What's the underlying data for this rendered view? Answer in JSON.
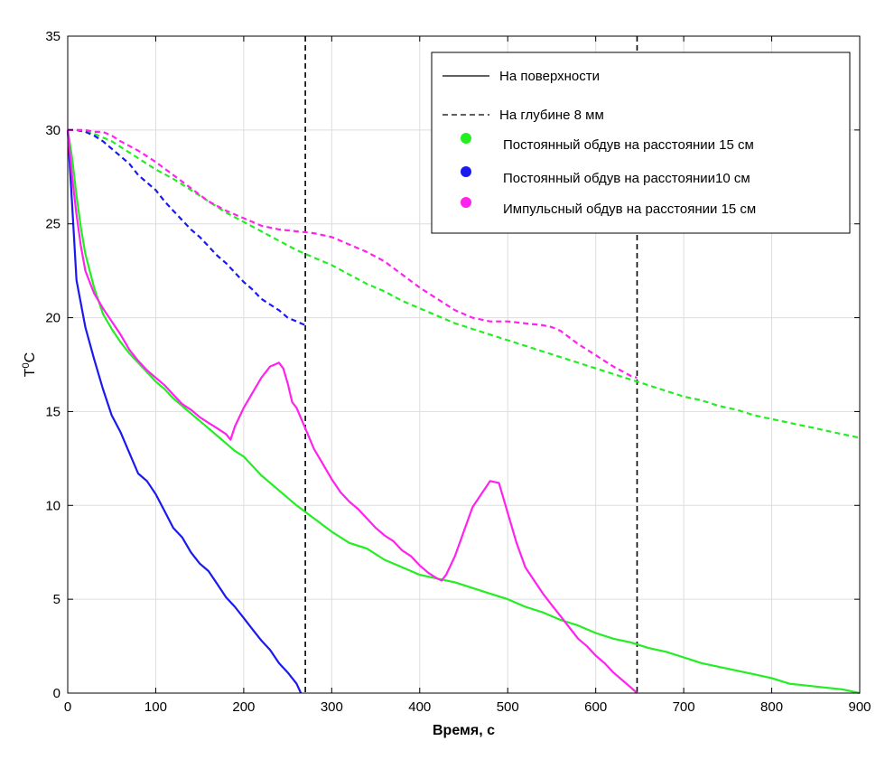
{
  "chart_data": {
    "type": "line",
    "title": "",
    "xlabel": "Время, с",
    "ylabel": "T⁰C",
    "ylabel_base": "T",
    "ylabel_sup": "0",
    "ylabel_unit": "C",
    "xlim": [
      0,
      900
    ],
    "ylim": [
      0,
      35
    ],
    "xticks": [
      0,
      100,
      200,
      300,
      400,
      500,
      600,
      700,
      800,
      900
    ],
    "yticks": [
      0,
      5,
      10,
      15,
      20,
      25,
      30,
      35
    ],
    "grid": true,
    "legend_position": "top-right",
    "legend": [
      {
        "label": "На поверхности",
        "style": "solid-line"
      },
      {
        "label": "На глубине 8 мм",
        "style": "dashed-line"
      },
      {
        "label": "Постоянный обдув на расстоянии 15 см",
        "style": "marker",
        "color": "#22ee22"
      },
      {
        "label": "Постоянный обдув на расстоянии10 см",
        "style": "marker",
        "color": "#1a1aee"
      },
      {
        "label": "Импульсный обдув на расстоянии 15 см",
        "style": "marker",
        "color": "#ff22ee"
      }
    ],
    "vlines": [
      {
        "x": 270,
        "style": "dashed",
        "color": "#000000"
      },
      {
        "x": 647,
        "style": "dashed",
        "color": "#000000"
      }
    ],
    "series": [
      {
        "condition": "Постоянный обдув на расстоянии 15 см",
        "location": "На поверхности",
        "color": "#22ee22",
        "dash": false,
        "x": [
          0,
          5,
          10,
          15,
          20,
          30,
          40,
          50,
          60,
          70,
          80,
          90,
          100,
          110,
          120,
          130,
          140,
          150,
          160,
          170,
          180,
          190,
          200,
          220,
          240,
          260,
          280,
          300,
          320,
          340,
          360,
          380,
          400,
          420,
          440,
          460,
          480,
          500,
          520,
          540,
          560,
          580,
          600,
          620,
          640,
          660,
          680,
          700,
          720,
          740,
          760,
          780,
          800,
          820,
          840,
          860,
          880,
          900
        ],
        "y": [
          30,
          28.5,
          26.5,
          24.8,
          23.4,
          21.6,
          20.2,
          19.4,
          18.7,
          18.1,
          17.6,
          17.1,
          16.6,
          16.2,
          15.7,
          15.3,
          14.9,
          14.5,
          14.1,
          13.7,
          13.3,
          12.9,
          12.6,
          11.6,
          10.8,
          10.0,
          9.3,
          8.6,
          8.0,
          7.7,
          7.1,
          6.7,
          6.3,
          6.1,
          5.9,
          5.6,
          5.3,
          5.0,
          4.6,
          4.3,
          3.9,
          3.6,
          3.2,
          2.9,
          2.7,
          2.4,
          2.2,
          1.9,
          1.6,
          1.4,
          1.2,
          1.0,
          0.8,
          0.5,
          0.4,
          0.3,
          0.2,
          0.0
        ]
      },
      {
        "condition": "Постоянный обдув на расстоянии10 см",
        "location": "На поверхности",
        "color": "#1a1aee",
        "dash": false,
        "x": [
          0,
          5,
          10,
          20,
          30,
          40,
          50,
          60,
          70,
          80,
          90,
          100,
          110,
          120,
          130,
          140,
          150,
          160,
          170,
          180,
          190,
          200,
          210,
          220,
          230,
          240,
          250,
          260,
          265
        ],
        "y": [
          30,
          26,
          22,
          19.5,
          17.8,
          16.2,
          14.8,
          13.9,
          12.8,
          11.7,
          11.3,
          10.6,
          9.7,
          8.8,
          8.3,
          7.5,
          6.9,
          6.5,
          5.8,
          5.1,
          4.6,
          4.0,
          3.4,
          2.8,
          2.3,
          1.6,
          1.1,
          0.5,
          0.0
        ]
      },
      {
        "condition": "Импульсный обдув на расстоянии 15 см",
        "location": "На поверхности",
        "color": "#ff22ee",
        "dash": false,
        "x": [
          0,
          5,
          10,
          15,
          20,
          30,
          40,
          50,
          60,
          70,
          80,
          90,
          100,
          110,
          120,
          130,
          140,
          150,
          160,
          170,
          180,
          185,
          190,
          200,
          210,
          220,
          230,
          240,
          245,
          250,
          255,
          260,
          270,
          280,
          290,
          300,
          310,
          320,
          330,
          340,
          350,
          360,
          370,
          380,
          390,
          400,
          410,
          420,
          425,
          430,
          440,
          450,
          460,
          470,
          480,
          490,
          500,
          510,
          520,
          530,
          540,
          550,
          560,
          570,
          580,
          590,
          600,
          610,
          620,
          630,
          640,
          647
        ],
        "y": [
          30,
          27.5,
          25.5,
          23.8,
          22.5,
          21.3,
          20.5,
          19.8,
          19.1,
          18.3,
          17.7,
          17.2,
          16.8,
          16.4,
          15.9,
          15.4,
          15.1,
          14.7,
          14.4,
          14.1,
          13.8,
          13.5,
          14.2,
          15.2,
          16.0,
          16.8,
          17.4,
          17.6,
          17.3,
          16.5,
          15.5,
          15.2,
          14.1,
          13.0,
          12.2,
          11.4,
          10.7,
          10.2,
          9.8,
          9.3,
          8.8,
          8.4,
          8.1,
          7.6,
          7.3,
          6.8,
          6.4,
          6.1,
          6.0,
          6.3,
          7.3,
          8.6,
          9.9,
          10.6,
          11.3,
          11.2,
          9.6,
          8.0,
          6.7,
          6.0,
          5.3,
          4.7,
          4.1,
          3.5,
          2.9,
          2.5,
          2.0,
          1.6,
          1.1,
          0.7,
          0.3,
          0.0
        ]
      },
      {
        "condition": "Постоянный обдув на расстоянии 15 см",
        "location": "На глубине 8 мм",
        "color": "#22ee22",
        "dash": true,
        "x": [
          0,
          10,
          20,
          30,
          40,
          50,
          60,
          80,
          100,
          120,
          140,
          160,
          180,
          200,
          220,
          240,
          260,
          280,
          300,
          320,
          340,
          360,
          380,
          400,
          420,
          440,
          460,
          480,
          500,
          520,
          540,
          560,
          580,
          600,
          620,
          640,
          660,
          680,
          700,
          720,
          740,
          760,
          780,
          800,
          820,
          840,
          860,
          880,
          900
        ],
        "y": [
          30,
          30,
          29.9,
          29.8,
          29.6,
          29.4,
          29.1,
          28.5,
          27.9,
          27.4,
          26.8,
          26.2,
          25.6,
          25.1,
          24.6,
          24.1,
          23.6,
          23.2,
          22.8,
          22.3,
          21.8,
          21.4,
          20.9,
          20.5,
          20.1,
          19.7,
          19.4,
          19.1,
          18.8,
          18.5,
          18.2,
          17.9,
          17.6,
          17.3,
          17.0,
          16.7,
          16.4,
          16.1,
          15.8,
          15.6,
          15.3,
          15.1,
          14.8,
          14.6,
          14.4,
          14.2,
          14.0,
          13.8,
          13.6
        ]
      },
      {
        "condition": "Постоянный обдув на расстоянии10 см",
        "location": "На глубине 8 мм",
        "color": "#1a1aee",
        "dash": true,
        "x": [
          0,
          10,
          20,
          30,
          40,
          50,
          60,
          70,
          80,
          90,
          100,
          110,
          120,
          130,
          140,
          150,
          160,
          170,
          180,
          190,
          200,
          210,
          220,
          230,
          240,
          250,
          260,
          270
        ],
        "y": [
          30,
          30,
          29.9,
          29.7,
          29.4,
          29.0,
          28.6,
          28.2,
          27.6,
          27.2,
          26.8,
          26.2,
          25.7,
          25.2,
          24.7,
          24.3,
          23.8,
          23.3,
          22.9,
          22.4,
          21.9,
          21.5,
          21.0,
          20.7,
          20.4,
          20.0,
          19.8,
          19.6
        ]
      },
      {
        "condition": "Импульсный обдув на расстоянии 15 см",
        "location": "На глубине 8 мм",
        "color": "#ff22ee",
        "dash": true,
        "x": [
          0,
          10,
          20,
          30,
          40,
          50,
          60,
          80,
          100,
          120,
          140,
          160,
          180,
          200,
          220,
          240,
          260,
          280,
          300,
          320,
          340,
          360,
          380,
          400,
          420,
          440,
          460,
          480,
          500,
          520,
          540,
          550,
          560,
          580,
          600,
          620,
          640,
          647
        ],
        "y": [
          30,
          30,
          30,
          29.9,
          29.9,
          29.7,
          29.4,
          28.9,
          28.3,
          27.6,
          26.9,
          26.2,
          25.7,
          25.3,
          24.9,
          24.7,
          24.6,
          24.5,
          24.3,
          23.9,
          23.5,
          23.0,
          22.3,
          21.6,
          21.0,
          20.4,
          20.0,
          19.8,
          19.8,
          19.7,
          19.6,
          19.5,
          19.3,
          18.6,
          18.0,
          17.4,
          16.9,
          16.8
        ]
      }
    ]
  }
}
